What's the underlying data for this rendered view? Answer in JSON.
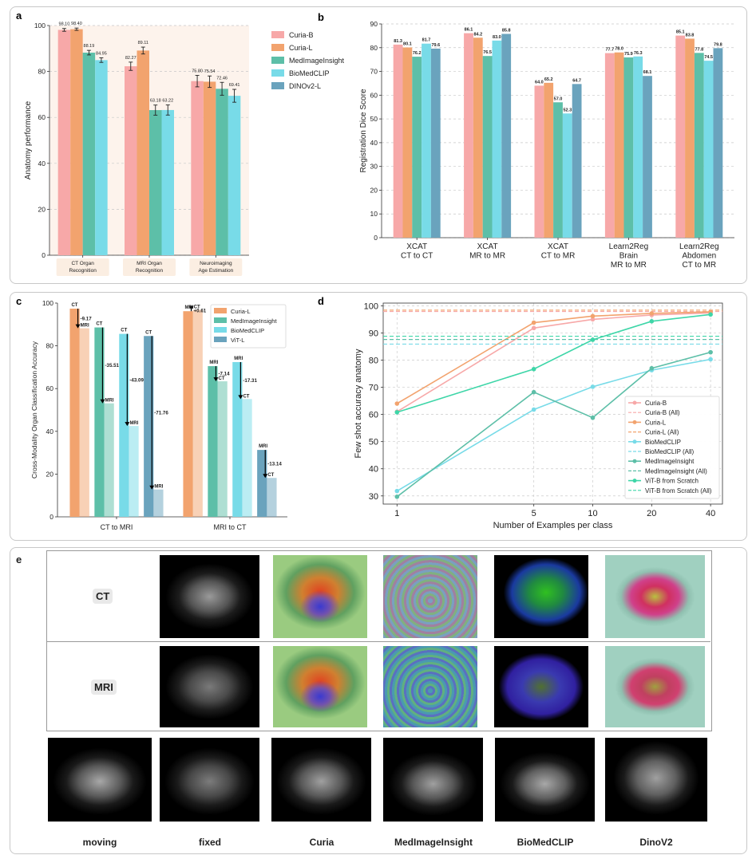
{
  "panels": {
    "a": "a",
    "b": "b",
    "c": "c",
    "d": "d",
    "e": "e"
  },
  "colors": {
    "curia_b": "#f7a8a8",
    "curia_l": "#f2a36e",
    "medimageinsight": "#5dbfa8",
    "biomedclip": "#78dbe8",
    "dinov2": "#6aa3bd",
    "vit_l": "#6aa3bd",
    "vit_b_scratch": "#3ed6a8"
  },
  "chart_data": [
    {
      "id": "a",
      "type": "bar",
      "ylabel": "Anatomy performance",
      "ylim": [
        0,
        100
      ],
      "yticks": [
        0,
        20,
        40,
        60,
        80,
        100
      ],
      "categories": [
        "CT Organ\nRecognition",
        "MRI Organ\nRecognition",
        "Neuroimaging\nAge Estimation"
      ],
      "series": [
        {
          "name": "Curia-B",
          "values": [
            98.1,
            82.27,
            75.8
          ],
          "err": [
            0.6,
            1.8,
            2.5
          ]
        },
        {
          "name": "Curia-L",
          "values": [
            98.4,
            89.11,
            75.54
          ],
          "err": [
            0.5,
            1.5,
            2.5
          ]
        },
        {
          "name": "MedImageInsight",
          "values": [
            88.19,
            63.18,
            72.46
          ],
          "err": [
            1.0,
            2.2,
            2.8
          ]
        },
        {
          "name": "BioMedCLIP",
          "values": [
            84.95,
            63.22,
            69.41
          ],
          "err": [
            1.0,
            2.2,
            2.8
          ]
        },
        {
          "name": "DINOv2-L",
          "values": [
            null,
            null,
            null
          ],
          "err": [
            null,
            null,
            null
          ]
        }
      ],
      "value_labels": [
        [
          "98.10",
          "82.27",
          "75.80"
        ],
        [
          "98.40",
          "89.11",
          "75.54"
        ],
        [
          "88.19",
          "63.18",
          "72.46"
        ],
        [
          "84.95",
          "63.22",
          "69.41"
        ],
        [
          "",
          "",
          ""
        ]
      ],
      "legend": "right"
    },
    {
      "id": "b",
      "type": "bar",
      "ylabel": "Registration Dice Score",
      "ylim": [
        0,
        90
      ],
      "yticks": [
        0,
        10,
        20,
        30,
        40,
        50,
        60,
        70,
        80,
        90
      ],
      "categories": [
        "XCAT\nCT to CT",
        "XCAT\nMR to MR",
        "XCAT\nCT to MR",
        "Learn2Reg\nBrain\nMR to MR",
        "Learn2Reg\nAbdomen\nCT to MR"
      ],
      "series": [
        {
          "name": "Curia-B",
          "values": [
            81.3,
            86.1,
            64.0,
            77.7,
            85.1
          ]
        },
        {
          "name": "Curia-L",
          "values": [
            80.1,
            84.2,
            65.2,
            78.0,
            83.8
          ]
        },
        {
          "name": "MedImageInsight",
          "values": [
            76.2,
            76.5,
            57.0,
            75.9,
            77.8
          ]
        },
        {
          "name": "BioMedCLIP",
          "values": [
            81.7,
            83.0,
            52.3,
            76.3,
            74.5
          ]
        },
        {
          "name": "DINOv2-L",
          "values": [
            79.6,
            85.8,
            64.7,
            68.1,
            79.8
          ]
        }
      ],
      "value_labels": [
        [
          "81.3",
          "86.1",
          "64.0",
          "77.7",
          "85.1"
        ],
        [
          "80.1",
          "84.2",
          "65.2",
          "78.0",
          "83.8"
        ],
        [
          "76.2",
          "76.5",
          "57.0",
          "75.9",
          "77.8"
        ],
        [
          "81.7",
          "83.0",
          "52.3",
          "76.3",
          "74.5"
        ],
        [
          "79.6",
          "85.8",
          "64.7",
          "68.1",
          "79.8"
        ]
      ]
    },
    {
      "id": "c",
      "type": "bar",
      "ylabel": "Cross-Modality Organ Classification Accuracy",
      "ylim": [
        0,
        100
      ],
      "yticks": [
        0,
        20,
        40,
        60,
        80,
        100
      ],
      "categories": [
        "CT to MRI",
        "MRI to CT"
      ],
      "legend_items": [
        "Curia-L",
        "MedImageInsight",
        "BioMedCLIP",
        "ViT-L"
      ],
      "groups": [
        {
          "category": "CT to MRI",
          "bars": [
            {
              "model": "Curia-L",
              "from": 97.4,
              "to": 88.2,
              "delta": "-9.17",
              "from_label": "CT",
              "to_label": "MRI"
            },
            {
              "model": "MedImageInsight",
              "from": 88.6,
              "to": 53.1,
              "delta": "-35.51",
              "from_label": "CT",
              "to_label": "MRI"
            },
            {
              "model": "BioMedCLIP",
              "from": 85.6,
              "to": 42.5,
              "delta": "-43.09",
              "from_label": "CT",
              "to_label": "MRI"
            },
            {
              "model": "ViT-L",
              "from": 84.6,
              "to": 12.8,
              "delta": "-71.76",
              "from_label": "CT",
              "to_label": "MRI"
            }
          ]
        },
        {
          "category": "MRI to CT",
          "bars": [
            {
              "model": "Curia-L",
              "from": 96.2,
              "to": 96.8,
              "delta": "+0.61",
              "from_label": "MRI",
              "to_label": "CT"
            },
            {
              "model": "MedImageInsight",
              "from": 70.5,
              "to": 63.4,
              "delta": "-7.14",
              "from_label": "MRI",
              "to_label": "CT"
            },
            {
              "model": "BioMedCLIP",
              "from": 72.4,
              "to": 55.1,
              "delta": "-17.31",
              "from_label": "MRI",
              "to_label": "CT"
            },
            {
              "model": "ViT-L",
              "from": 31.3,
              "to": 18.2,
              "delta": "-13.14",
              "from_label": "MRI",
              "to_label": "CT"
            }
          ]
        }
      ]
    },
    {
      "id": "d",
      "type": "line",
      "xlabel": "Number of Examples per class",
      "ylabel": "Few shot accuracy anatomy",
      "xscale": "log",
      "x": [
        1,
        5,
        10,
        20,
        40
      ],
      "xticks": [
        "1",
        "5",
        "10",
        "20",
        "40"
      ],
      "ylim": [
        27,
        101
      ],
      "yticks": [
        30,
        40,
        50,
        60,
        70,
        80,
        90,
        100
      ],
      "grid": true,
      "legend": "lower-right",
      "series": [
        {
          "name": "Curia-B",
          "values": [
            61,
            91.8,
            95.0,
            96.6,
            97.4
          ],
          "all": 97.9
        },
        {
          "name": "Curia-L",
          "values": [
            64,
            93.8,
            96.2,
            97.2,
            97.8
          ],
          "all": 98.4
        },
        {
          "name": "BioMedCLIP",
          "values": [
            31.8,
            61.8,
            70.2,
            76.3,
            80.3
          ],
          "all": 85.9
        },
        {
          "name": "MedImageInsight",
          "values": [
            29.7,
            68.2,
            58.8,
            77.0,
            82.9
          ],
          "all": 87.6
        },
        {
          "name": "ViT-B from Scratch",
          "values": [
            60.8,
            76.7,
            87.5,
            94.3,
            96.8
          ],
          "all": 88.8
        }
      ],
      "legend_entries": [
        "Curia-B",
        "Curia-B (All)",
        "Curia-L",
        "Curia-L (All)",
        "BioMedCLIP",
        "BioMedCLIP (All)",
        "MedImageInsight",
        "MedImageInsight (All)",
        "ViT-B from Scratch",
        "ViT-B from Scratch (All)"
      ]
    }
  ],
  "panel_e": {
    "row_labels": [
      "CT",
      "MRI"
    ],
    "captions": [
      "moving",
      "fixed",
      "Curia",
      "MedImageInsight",
      "BioMedCLIP",
      "DinoV2"
    ]
  }
}
